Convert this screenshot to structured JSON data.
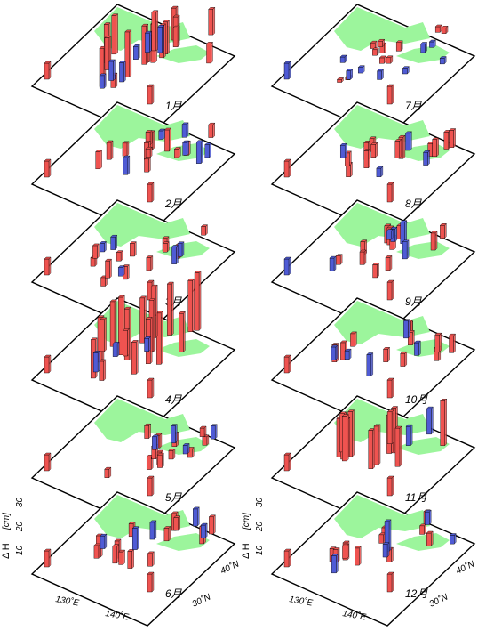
{
  "chart_data": {
    "type": "bar3d",
    "colors": {
      "positive": "#ef5350",
      "negative": "#4f5bd5",
      "land": "#9cf59c",
      "frame": "#000000"
    },
    "axes": {
      "z_title": "Δ H",
      "z_unit": "[cm]",
      "z_ticks": [
        "10",
        "20",
        "30"
      ],
      "x_ticks": [
        "130˚E",
        "140˚E"
      ],
      "y_ticks": [
        "30˚N",
        "40˚N"
      ]
    },
    "panels": [
      {
        "month": "1月",
        "pos": [
          6,
          6,
          4,
          6,
          5,
          7,
          5,
          6,
          4,
          5,
          6,
          3,
          5,
          4,
          6,
          3,
          2
        ],
        "neg": [
          3,
          4,
          3,
          2,
          2,
          3
        ],
        "heights": "tall"
      },
      {
        "month": "2月",
        "pos": [
          4,
          5,
          3,
          4,
          3,
          4,
          2,
          3,
          4,
          3,
          2,
          3
        ],
        "neg": [
          3,
          4,
          5,
          3,
          3,
          2
        ],
        "heights": "medium"
      },
      {
        "month": "3月",
        "pos": [
          3,
          2,
          3,
          3,
          2,
          3,
          2,
          3,
          2,
          4,
          2,
          3
        ],
        "neg": [
          3,
          4,
          2,
          3,
          2
        ],
        "heights": "medium"
      },
      {
        "month": "4月",
        "pos": [
          8,
          9,
          8,
          8,
          7,
          9,
          8,
          7,
          8,
          7,
          8,
          6,
          7,
          5,
          6,
          4,
          3,
          5
        ],
        "neg": [
          2,
          3,
          2
        ],
        "heights": "tall"
      },
      {
        "month": "5月",
        "pos": [
          3,
          3,
          2,
          3,
          2,
          3,
          2,
          3,
          2,
          3,
          2,
          3
        ],
        "neg": [
          3,
          4,
          2,
          3
        ],
        "heights": "medium"
      },
      {
        "month": "6月",
        "pos": [
          4,
          5,
          3,
          4,
          3,
          4,
          3,
          4,
          3,
          4,
          3,
          4,
          3
        ],
        "neg": [
          4,
          5,
          3,
          3,
          4
        ],
        "heights": "medium"
      },
      {
        "month": "7月",
        "pos": [
          2,
          2,
          1,
          2,
          2,
          3,
          2,
          1,
          2,
          3,
          2
        ],
        "neg": [
          3,
          2,
          2,
          3,
          2,
          2,
          3,
          2
        ],
        "heights": "short"
      },
      {
        "month": "8月",
        "pos": [
          4,
          3,
          4,
          3,
          4,
          3,
          4,
          3,
          5,
          3,
          4,
          4
        ],
        "neg": [
          4,
          3,
          2,
          3
        ],
        "heights": "medium"
      },
      {
        "month": "9月",
        "pos": [
          3,
          4,
          3,
          3,
          2,
          3,
          4,
          3,
          4,
          3,
          3
        ],
        "neg": [
          5,
          4,
          3,
          3,
          2
        ],
        "heights": "medium"
      },
      {
        "month": "10月",
        "pos": [
          3,
          4,
          3,
          4,
          3,
          3,
          4,
          3,
          4,
          3,
          3
        ],
        "neg": [
          5,
          4,
          3,
          3,
          2
        ],
        "heights": "medium"
      },
      {
        "month": "11月",
        "pos": [
          6,
          7,
          6,
          7,
          6,
          7,
          6,
          7,
          6,
          6,
          7,
          6,
          5
        ],
        "neg": [
          4,
          3
        ],
        "heights": "tall"
      },
      {
        "month": "12月",
        "pos": [
          3,
          4,
          3,
          3,
          4,
          3,
          3,
          2,
          3,
          2,
          3
        ],
        "neg": [
          7,
          4,
          3,
          3,
          2
        ],
        "heights": "medium"
      }
    ]
  }
}
